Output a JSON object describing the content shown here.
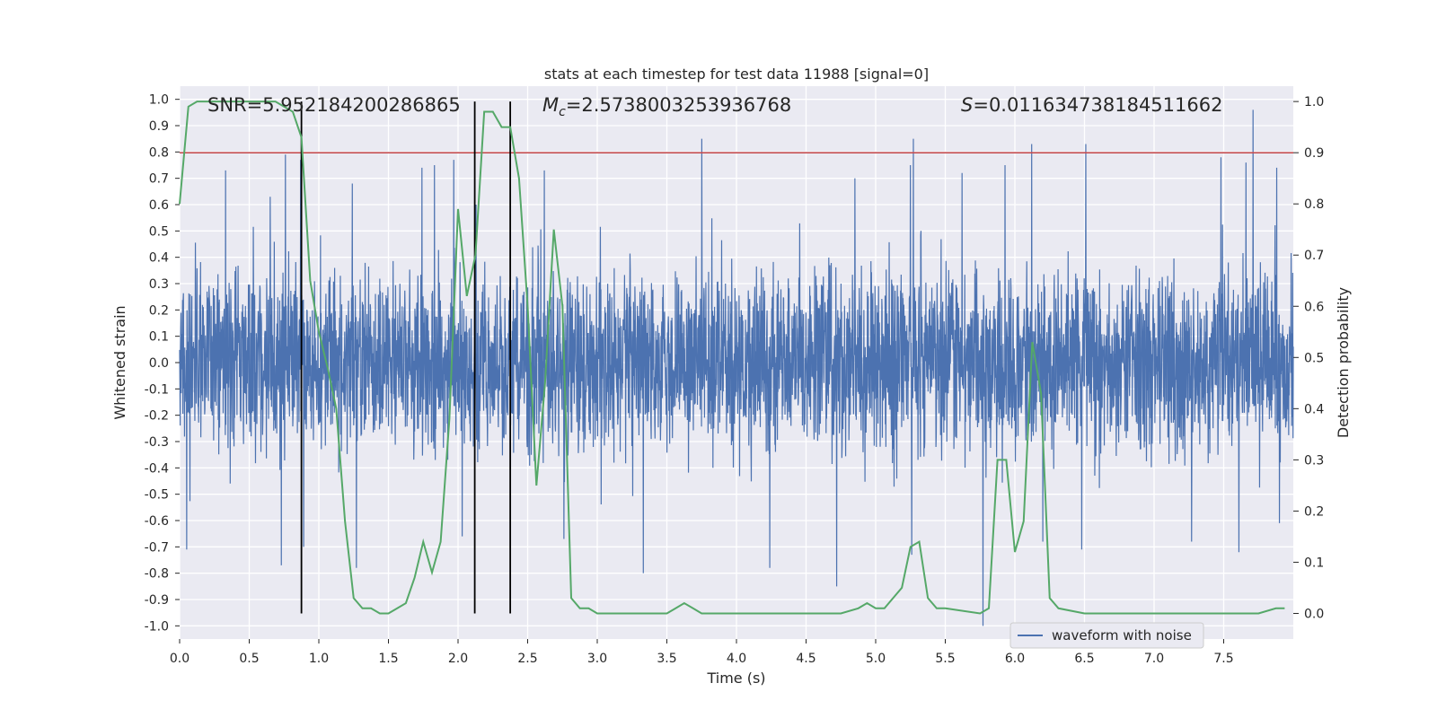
{
  "chart_data": {
    "type": "line",
    "title": "stats at each timestep for test data 11988 [signal=0]",
    "xlabel": "Time (s)",
    "ylabel_left": "Whitened strain",
    "ylabel_right": "Detection probability",
    "xlim": [
      0.0,
      8.0
    ],
    "ylim_left": [
      -1.05,
      1.05
    ],
    "ylim_right": [
      -0.05,
      1.03
    ],
    "xticks": [
      0.0,
      0.5,
      1.0,
      1.5,
      2.0,
      2.5,
      3.0,
      3.5,
      4.0,
      4.5,
      5.0,
      5.5,
      6.0,
      6.5,
      7.0,
      7.5
    ],
    "xtick_labels": [
      "0.0",
      "0.5",
      "1.0",
      "1.5",
      "2.0",
      "2.5",
      "3.0",
      "3.5",
      "4.0",
      "4.5",
      "5.0",
      "5.5",
      "6.0",
      "6.5",
      "7.0",
      "7.5"
    ],
    "yticks_left": [
      1.0,
      0.9,
      0.8,
      0.7,
      0.6,
      0.5,
      0.4,
      0.3,
      0.2,
      0.1,
      0.0,
      -0.1,
      -0.2,
      -0.3,
      -0.4,
      -0.5,
      -0.6,
      -0.7,
      -0.8,
      -0.9,
      -1.0
    ],
    "ytick_labels_left": [
      "1.0",
      "0.9",
      "0.8",
      "0.7",
      "0.6",
      "0.5",
      "0.4",
      "0.3",
      "0.2",
      "0.1",
      "0.0",
      "-0.1",
      "-0.2",
      "-0.3",
      "-0.4",
      "-0.5",
      "-0.6",
      "-0.7",
      "-0.8",
      "-0.9",
      "-1.0"
    ],
    "yticks_right": [
      1.0,
      0.9,
      0.8,
      0.7,
      0.6,
      0.5,
      0.4,
      0.3,
      0.2,
      0.1,
      0.0
    ],
    "ytick_labels_right": [
      "1.0",
      "0.9",
      "0.8",
      "0.7",
      "0.6",
      "0.5",
      "0.4",
      "0.3",
      "0.2",
      "0.1",
      "0.0"
    ],
    "annotations": {
      "snr": "SNR=5.952184200286865",
      "mc_symbol": "M",
      "mc_sub": "c",
      "mc_value": "=2.5738003253936768",
      "s_symbol": "S",
      "s_value": "=0.011634738184511662"
    },
    "threshold": 0.9,
    "vertical_markers": [
      0.875,
      2.12,
      2.375
    ],
    "legend": {
      "label": "waveform with noise",
      "location": "lower-right"
    },
    "waveform": {
      "name": "waveform with noise",
      "x_range": [
        0.0,
        8.0
      ],
      "n_samples": 4096,
      "envelope": {
        "typical_max": 0.45,
        "typical_min": -0.45,
        "dense_band": [
          -0.4,
          0.4
        ]
      },
      "spike_peaks": [
        [
          0.33,
          0.73
        ],
        [
          0.65,
          0.63
        ],
        [
          0.76,
          0.79
        ],
        [
          0.87,
          0.77
        ],
        [
          1.24,
          0.68
        ],
        [
          1.74,
          0.74
        ],
        [
          1.83,
          0.75
        ],
        [
          1.97,
          0.77
        ],
        [
          2.13,
          0.6
        ],
        [
          2.62,
          0.73
        ],
        [
          3.75,
          0.85
        ],
        [
          4.85,
          0.7
        ],
        [
          5.25,
          0.75
        ],
        [
          5.27,
          0.85
        ],
        [
          5.62,
          0.72
        ],
        [
          5.93,
          0.75
        ],
        [
          6.12,
          0.83
        ],
        [
          6.51,
          0.83
        ],
        [
          7.48,
          0.78
        ],
        [
          7.66,
          0.76
        ],
        [
          7.71,
          0.96
        ],
        [
          7.88,
          0.74
        ]
      ],
      "spike_troughs": [
        [
          0.05,
          -0.71
        ],
        [
          0.73,
          -0.77
        ],
        [
          0.89,
          -0.7
        ],
        [
          1.27,
          -0.78
        ],
        [
          2.03,
          -0.66
        ],
        [
          2.76,
          -0.67
        ],
        [
          3.33,
          -0.8
        ],
        [
          4.24,
          -0.78
        ],
        [
          4.72,
          -0.85
        ],
        [
          5.26,
          -0.73
        ],
        [
          5.77,
          -1.0
        ],
        [
          6.2,
          -0.68
        ],
        [
          6.48,
          -0.71
        ],
        [
          7.27,
          -0.68
        ],
        [
          7.61,
          -0.72
        ],
        [
          7.9,
          -0.61
        ]
      ]
    },
    "probability": {
      "name": "detection probability",
      "x": [
        0.0,
        0.063,
        0.125,
        0.188,
        0.25,
        0.313,
        0.375,
        0.438,
        0.5,
        0.563,
        0.625,
        0.688,
        0.75,
        0.813,
        0.875,
        0.938,
        1.0,
        1.063,
        1.125,
        1.188,
        1.25,
        1.313,
        1.375,
        1.438,
        1.5,
        1.563,
        1.625,
        1.688,
        1.75,
        1.813,
        1.875,
        1.938,
        2.0,
        2.063,
        2.125,
        2.188,
        2.25,
        2.313,
        2.375,
        2.438,
        2.5,
        2.563,
        2.625,
        2.688,
        2.75,
        2.813,
        2.875,
        2.938,
        3.0,
        3.063,
        3.125,
        3.25,
        3.5,
        3.563,
        3.625,
        3.688,
        3.75,
        4.0,
        4.5,
        4.75,
        4.875,
        4.938,
        5.0,
        5.063,
        5.125,
        5.188,
        5.25,
        5.313,
        5.375,
        5.438,
        5.5,
        5.75,
        5.813,
        5.875,
        5.938,
        6.0,
        6.063,
        6.125,
        6.188,
        6.25,
        6.313,
        6.5,
        7.5,
        7.625,
        7.75,
        7.875,
        7.938
      ],
      "y": [
        0.8,
        0.99,
        1.0,
        1.0,
        1.0,
        1.0,
        1.0,
        1.0,
        1.0,
        1.0,
        1.0,
        1.0,
        0.99,
        0.98,
        0.93,
        0.65,
        0.55,
        0.48,
        0.4,
        0.18,
        0.03,
        0.01,
        0.01,
        0.0,
        0.0,
        0.01,
        0.02,
        0.07,
        0.14,
        0.08,
        0.14,
        0.38,
        0.79,
        0.62,
        0.7,
        0.98,
        0.98,
        0.95,
        0.95,
        0.85,
        0.6,
        0.25,
        0.45,
        0.75,
        0.6,
        0.03,
        0.01,
        0.01,
        0.0,
        0.0,
        0.0,
        0.0,
        0.0,
        0.01,
        0.02,
        0.01,
        0.0,
        0.0,
        0.0,
        0.0,
        0.01,
        0.02,
        0.01,
        0.01,
        0.03,
        0.05,
        0.13,
        0.14,
        0.03,
        0.01,
        0.01,
        0.0,
        0.01,
        0.3,
        0.3,
        0.12,
        0.18,
        0.53,
        0.43,
        0.03,
        0.01,
        0.0,
        0.0,
        0.0,
        0.0,
        0.01,
        0.01
      ]
    }
  }
}
